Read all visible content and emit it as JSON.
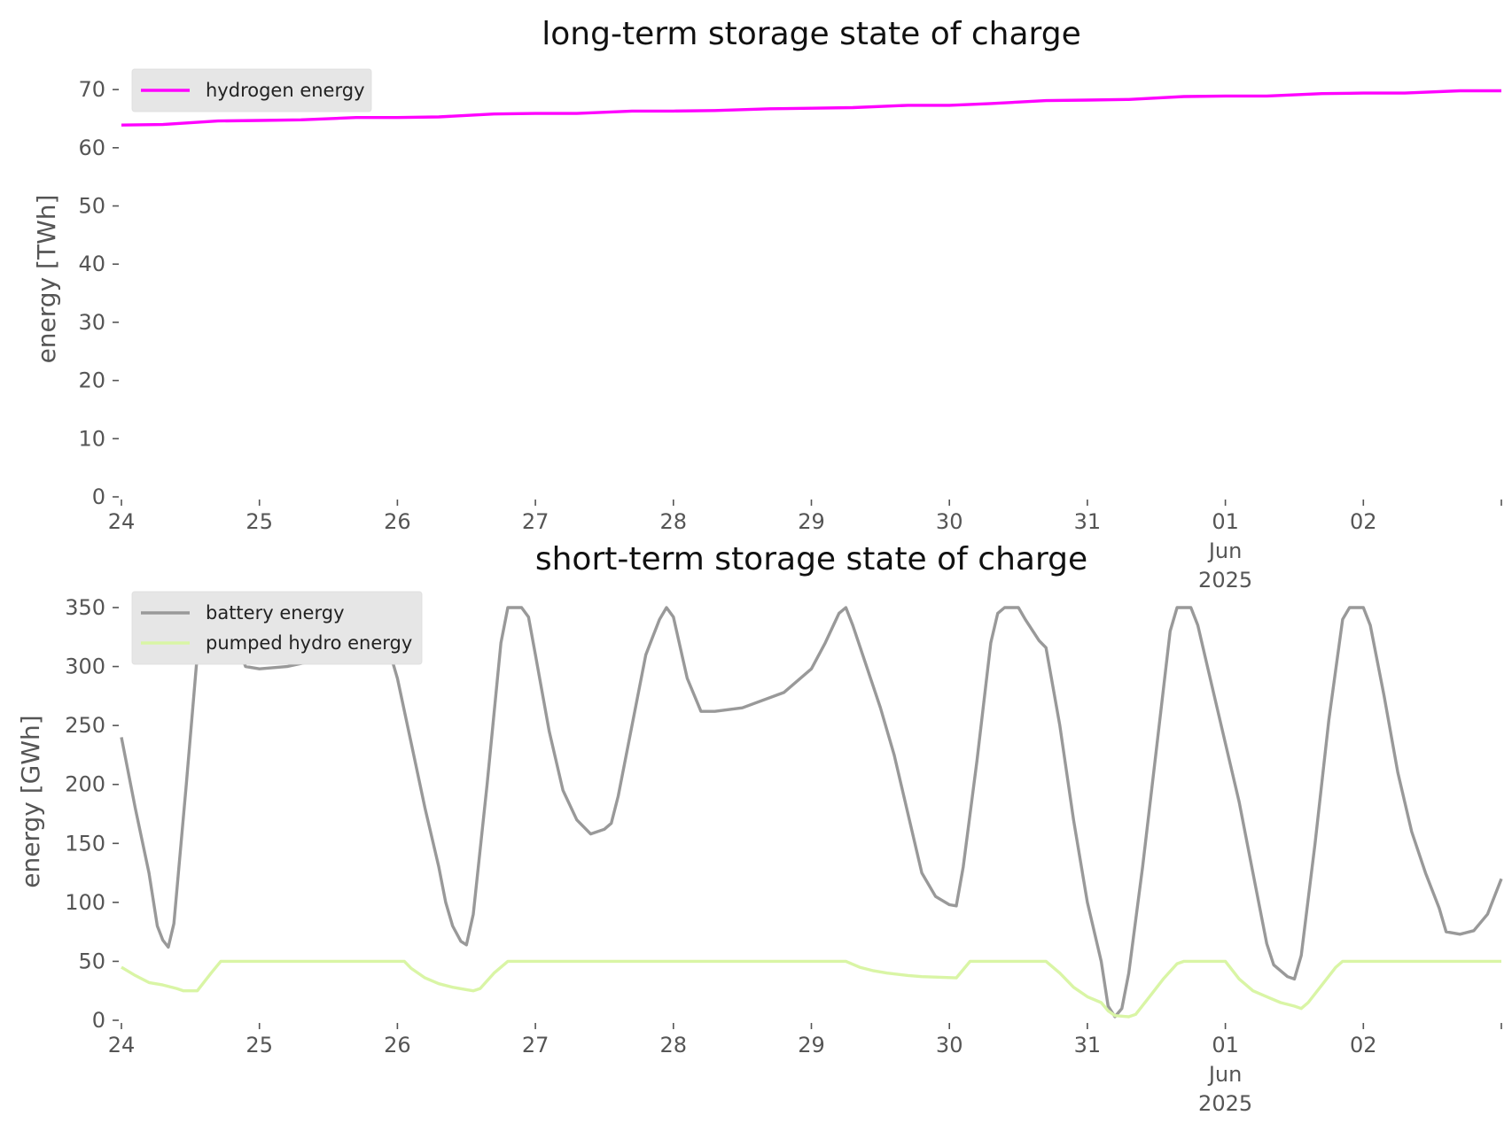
{
  "chart_data": [
    {
      "type": "line",
      "title": "long-term storage state of charge",
      "ylabel": "energy [TWh]",
      "ylim": [
        0,
        72
      ],
      "yticks": [
        0,
        10,
        20,
        30,
        40,
        50,
        60,
        70
      ],
      "x_range_days": [
        0,
        10
      ],
      "xticks": [
        {
          "day": 0,
          "lines": [
            "24"
          ]
        },
        {
          "day": 1,
          "lines": [
            "25"
          ]
        },
        {
          "day": 2,
          "lines": [
            "26"
          ]
        },
        {
          "day": 3,
          "lines": [
            "27"
          ]
        },
        {
          "day": 4,
          "lines": [
            "28"
          ]
        },
        {
          "day": 5,
          "lines": [
            "29"
          ]
        },
        {
          "day": 6,
          "lines": [
            "30"
          ]
        },
        {
          "day": 7,
          "lines": [
            "31"
          ]
        },
        {
          "day": 8,
          "lines": [
            "01",
            "Jun",
            "2025"
          ]
        },
        {
          "day": 9,
          "lines": [
            "02"
          ]
        },
        {
          "day": 10,
          "lines": [
            ""
          ]
        }
      ],
      "legend_position": "top-left",
      "grid": false,
      "series": [
        {
          "name": "hydrogen energy",
          "color": "#ff00ff",
          "points": [
            [
              0,
              63.9
            ],
            [
              0.3,
              64.0
            ],
            [
              0.7,
              64.6
            ],
            [
              1.0,
              64.7
            ],
            [
              1.3,
              64.8
            ],
            [
              1.7,
              65.2
            ],
            [
              2.0,
              65.2
            ],
            [
              2.3,
              65.3
            ],
            [
              2.7,
              65.8
            ],
            [
              3.0,
              65.9
            ],
            [
              3.3,
              65.9
            ],
            [
              3.7,
              66.3
            ],
            [
              4.0,
              66.3
            ],
            [
              4.3,
              66.4
            ],
            [
              4.7,
              66.7
            ],
            [
              5.0,
              66.8
            ],
            [
              5.3,
              66.9
            ],
            [
              5.7,
              67.3
            ],
            [
              6.0,
              67.3
            ],
            [
              6.3,
              67.6
            ],
            [
              6.7,
              68.1
            ],
            [
              7.0,
              68.2
            ],
            [
              7.3,
              68.3
            ],
            [
              7.7,
              68.8
            ],
            [
              8.0,
              68.9
            ],
            [
              8.3,
              68.9
            ],
            [
              8.7,
              69.3
            ],
            [
              9.0,
              69.4
            ],
            [
              9.3,
              69.4
            ],
            [
              9.7,
              69.8
            ],
            [
              10.0,
              69.8
            ]
          ]
        }
      ]
    },
    {
      "type": "line",
      "title": "short-term storage state of charge",
      "ylabel": "energy [GWh]",
      "ylim": [
        0,
        356
      ],
      "yticks": [
        0,
        50,
        100,
        150,
        200,
        250,
        300,
        350
      ],
      "x_range_days": [
        0,
        10
      ],
      "xticks": [
        {
          "day": 0,
          "lines": [
            "24"
          ]
        },
        {
          "day": 1,
          "lines": [
            "25"
          ]
        },
        {
          "day": 2,
          "lines": [
            "26"
          ]
        },
        {
          "day": 3,
          "lines": [
            "27"
          ]
        },
        {
          "day": 4,
          "lines": [
            "28"
          ]
        },
        {
          "day": 5,
          "lines": [
            "29"
          ]
        },
        {
          "day": 6,
          "lines": [
            "30"
          ]
        },
        {
          "day": 7,
          "lines": [
            "31"
          ]
        },
        {
          "day": 8,
          "lines": [
            "01",
            "Jun",
            "2025"
          ]
        },
        {
          "day": 9,
          "lines": [
            "02"
          ]
        },
        {
          "day": 10,
          "lines": [
            ""
          ]
        }
      ],
      "legend_position": "top-left",
      "grid": false,
      "series": [
        {
          "name": "battery energy",
          "color": "#999999",
          "points": [
            [
              0,
              240
            ],
            [
              0.1,
              180
            ],
            [
              0.2,
              125
            ],
            [
              0.26,
              80
            ],
            [
              0.3,
              68
            ],
            [
              0.34,
              62
            ],
            [
              0.38,
              82
            ],
            [
              0.47,
              200
            ],
            [
              0.55,
              310
            ],
            [
              0.6,
              350
            ],
            [
              0.7,
              348
            ],
            [
              0.8,
              330
            ],
            [
              0.9,
              300
            ],
            [
              1.0,
              298
            ],
            [
              1.2,
              300
            ],
            [
              1.4,
              305
            ],
            [
              1.6,
              312
            ],
            [
              1.7,
              330
            ],
            [
              1.8,
              350
            ],
            [
              1.85,
              340
            ],
            [
              1.95,
              310
            ],
            [
              2.0,
              290
            ],
            [
              2.1,
              235
            ],
            [
              2.2,
              180
            ],
            [
              2.3,
              130
            ],
            [
              2.35,
              100
            ],
            [
              2.4,
              80
            ],
            [
              2.46,
              67
            ],
            [
              2.5,
              64
            ],
            [
              2.55,
              90
            ],
            [
              2.65,
              200
            ],
            [
              2.75,
              320
            ],
            [
              2.8,
              350
            ],
            [
              2.9,
              350
            ],
            [
              2.95,
              342
            ],
            [
              3.0,
              310
            ],
            [
              3.1,
              245
            ],
            [
              3.2,
              195
            ],
            [
              3.3,
              170
            ],
            [
              3.4,
              158
            ],
            [
              3.5,
              162
            ],
            [
              3.55,
              167
            ],
            [
              3.6,
              190
            ],
            [
              3.7,
              250
            ],
            [
              3.8,
              310
            ],
            [
              3.85,
              325
            ],
            [
              3.9,
              340
            ],
            [
              3.95,
              350
            ],
            [
              4.0,
              342
            ],
            [
              4.1,
              290
            ],
            [
              4.2,
              262
            ],
            [
              4.3,
              262
            ],
            [
              4.5,
              265
            ],
            [
              4.8,
              278
            ],
            [
              5.0,
              298
            ],
            [
              5.1,
              320
            ],
            [
              5.2,
              345
            ],
            [
              5.25,
              350
            ],
            [
              5.3,
              335
            ],
            [
              5.4,
              300
            ],
            [
              5.5,
              265
            ],
            [
              5.6,
              225
            ],
            [
              5.7,
              175
            ],
            [
              5.8,
              125
            ],
            [
              5.9,
              105
            ],
            [
              6.0,
              98
            ],
            [
              6.05,
              97
            ],
            [
              6.1,
              130
            ],
            [
              6.2,
              220
            ],
            [
              6.3,
              320
            ],
            [
              6.35,
              345
            ],
            [
              6.4,
              350
            ],
            [
              6.5,
              350
            ],
            [
              6.55,
              340
            ],
            [
              6.65,
              322
            ],
            [
              6.7,
              316
            ],
            [
              6.8,
              250
            ],
            [
              6.9,
              170
            ],
            [
              7.0,
              100
            ],
            [
              7.1,
              50
            ],
            [
              7.15,
              12
            ],
            [
              7.2,
              3
            ],
            [
              7.25,
              10
            ],
            [
              7.3,
              40
            ],
            [
              7.4,
              130
            ],
            [
              7.5,
              230
            ],
            [
              7.6,
              330
            ],
            [
              7.65,
              350
            ],
            [
              7.75,
              350
            ],
            [
              7.8,
              335
            ],
            [
              7.9,
              285
            ],
            [
              8.0,
              235
            ],
            [
              8.1,
              185
            ],
            [
              8.2,
              125
            ],
            [
              8.3,
              65
            ],
            [
              8.35,
              47
            ],
            [
              8.45,
              37
            ],
            [
              8.5,
              35
            ],
            [
              8.55,
              55
            ],
            [
              8.65,
              150
            ],
            [
              8.75,
              255
            ],
            [
              8.85,
              340
            ],
            [
              8.9,
              350
            ],
            [
              9.0,
              350
            ],
            [
              9.05,
              335
            ],
            [
              9.15,
              275
            ],
            [
              9.25,
              210
            ],
            [
              9.35,
              160
            ],
            [
              9.45,
              125
            ],
            [
              9.55,
              95
            ],
            [
              9.6,
              75
            ],
            [
              9.7,
              73
            ],
            [
              9.8,
              76
            ],
            [
              9.9,
              90
            ],
            [
              10.0,
              120
            ]
          ]
        },
        {
          "name": "pumped hydro energy",
          "color": "#d9f5a5",
          "points": [
            [
              0,
              45
            ],
            [
              0.1,
              38
            ],
            [
              0.2,
              32
            ],
            [
              0.3,
              30
            ],
            [
              0.4,
              27
            ],
            [
              0.45,
              25
            ],
            [
              0.55,
              25
            ],
            [
              0.65,
              40
            ],
            [
              0.72,
              50
            ],
            [
              1.0,
              50
            ],
            [
              2.0,
              50
            ],
            [
              2.05,
              50
            ],
            [
              2.1,
              44
            ],
            [
              2.2,
              36
            ],
            [
              2.3,
              31
            ],
            [
              2.4,
              28
            ],
            [
              2.5,
              26
            ],
            [
              2.55,
              25
            ],
            [
              2.6,
              27
            ],
            [
              2.7,
              40
            ],
            [
              2.8,
              50
            ],
            [
              3.0,
              50
            ],
            [
              5.25,
              50
            ],
            [
              5.35,
              45
            ],
            [
              5.45,
              42
            ],
            [
              5.55,
              40
            ],
            [
              5.7,
              38
            ],
            [
              5.8,
              37
            ],
            [
              6.05,
              36
            ],
            [
              6.15,
              50
            ],
            [
              6.35,
              50
            ],
            [
              6.7,
              50
            ],
            [
              6.8,
              40
            ],
            [
              6.9,
              28
            ],
            [
              7.0,
              20
            ],
            [
              7.1,
              15
            ],
            [
              7.15,
              8
            ],
            [
              7.2,
              4
            ],
            [
              7.3,
              3
            ],
            [
              7.35,
              5
            ],
            [
              7.45,
              20
            ],
            [
              7.55,
              35
            ],
            [
              7.65,
              48
            ],
            [
              7.7,
              50
            ],
            [
              7.9,
              50
            ],
            [
              8.0,
              50
            ],
            [
              8.1,
              35
            ],
            [
              8.2,
              25
            ],
            [
              8.3,
              20
            ],
            [
              8.4,
              15
            ],
            [
              8.5,
              12
            ],
            [
              8.55,
              10
            ],
            [
              8.6,
              15
            ],
            [
              8.7,
              30
            ],
            [
              8.8,
              45
            ],
            [
              8.85,
              50
            ],
            [
              10.0,
              50
            ]
          ]
        }
      ]
    }
  ]
}
